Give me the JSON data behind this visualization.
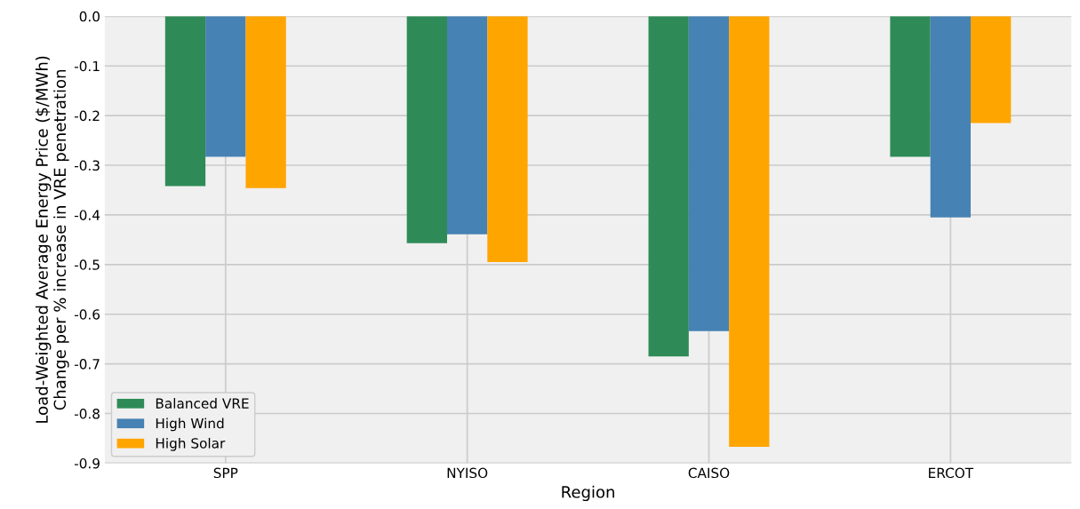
{
  "chart_data": {
    "type": "bar",
    "xlabel": "Region",
    "ylabel": "Load-Weighted Average Energy Price ($/MWh)\nChange per % increase in VRE penetration",
    "categories": [
      "SPP",
      "NYISO",
      "CAISO",
      "ERCOT"
    ],
    "series": [
      {
        "name": "Balanced VRE",
        "color": "#2e8b57",
        "values": [
          -0.342,
          -0.457,
          -0.685,
          -0.283
        ]
      },
      {
        "name": "High Wind",
        "color": "#4682b4",
        "values": [
          -0.283,
          -0.439,
          -0.634,
          -0.405
        ]
      },
      {
        "name": "High Solar",
        "color": "#ffa500",
        "values": [
          -0.346,
          -0.495,
          -0.867,
          -0.215
        ]
      }
    ],
    "ylim": [
      -0.9,
      0.0
    ],
    "yticks": [
      {
        "value": -0.9,
        "label": "-0.9"
      },
      {
        "value": -0.8,
        "label": "-0.8"
      },
      {
        "value": -0.7,
        "label": "-0.7"
      },
      {
        "value": -0.6,
        "label": "-0.6"
      },
      {
        "value": -0.5,
        "label": "-0.5"
      },
      {
        "value": -0.4,
        "label": "-0.4"
      },
      {
        "value": -0.3,
        "label": "-0.3"
      },
      {
        "value": -0.2,
        "label": "-0.2"
      },
      {
        "value": -0.1,
        "label": "-0.1"
      },
      {
        "value": 0.0,
        "label": "0.0"
      }
    ],
    "grid": true,
    "legend": "bottom left"
  }
}
